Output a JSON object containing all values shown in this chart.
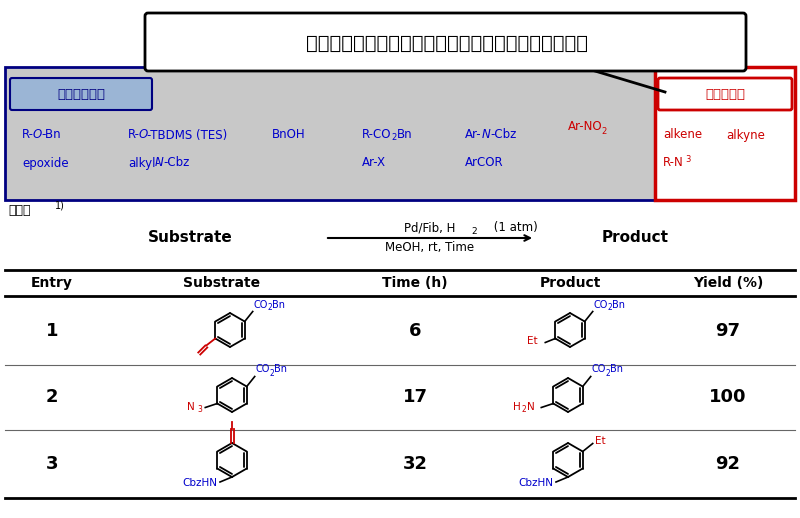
{
  "title": "アルケン、アジド、アルキンを選択的に還元します。",
  "title_fontsize": 14,
  "not_reduced_label": "還元されない",
  "reduced_label": "還元される",
  "blue_color": "#0000CC",
  "red_color": "#CC0000",
  "dark_blue": "#000080",
  "bg_gray": "#C8C8C8",
  "bg_light_blue": "#9BB5D5",
  "white": "#FFFFFF",
  "black": "#000000",
  "reaction_label_top": "Pd/Fib, H",
  "reaction_label_top2": "2",
  "reaction_label_top3": " (1 atm)",
  "reaction_label_bottom": "MeOH, rt, Time",
  "substrate_label": "Substrate",
  "product_label": "Product",
  "table_headers": [
    "Entry",
    "Substrate",
    "Time (h)",
    "Product",
    "Yield (%)"
  ],
  "times": [
    "6",
    "17",
    "32"
  ],
  "yields": [
    "97",
    "100",
    "92"
  ],
  "entries": [
    "1",
    "2",
    "3"
  ]
}
